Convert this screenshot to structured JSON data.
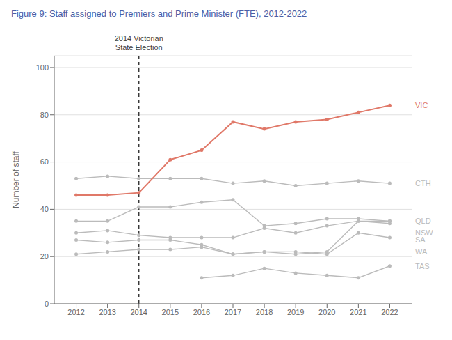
{
  "chart_data": {
    "type": "line",
    "title": "Figure 9: Staff assigned to Premiers and Prime Minister (FTE), 2012-2022",
    "ylabel": "Number of staff",
    "x": [
      2012,
      2013,
      2014,
      2015,
      2016,
      2017,
      2018,
      2019,
      2020,
      2021,
      2022
    ],
    "series": [
      {
        "name": "CTH",
        "color": "#BBBBBB",
        "values": [
          53,
          54,
          53,
          53,
          53,
          51,
          52,
          50,
          51,
          52,
          51
        ],
        "label_y": 51
      },
      {
        "name": "QLD",
        "color": "#BBBBBB",
        "values": [
          35,
          35,
          41,
          41,
          43,
          44,
          33,
          34,
          36,
          36,
          35
        ],
        "label_y": 35
      },
      {
        "name": "NSW",
        "color": "#BBBBBB",
        "values": [
          30,
          31,
          29,
          28,
          28,
          28,
          32,
          30,
          33,
          35,
          34
        ],
        "label_y": 30
      },
      {
        "name": "SA",
        "color": "#BBBBBB",
        "values": [
          27,
          26,
          27,
          27,
          25,
          21,
          22,
          22,
          21,
          30,
          28
        ],
        "label_y": 27
      },
      {
        "name": "WA",
        "color": "#BBBBBB",
        "values": [
          21,
          22,
          23,
          23,
          24,
          21,
          22,
          21,
          22,
          35,
          35
        ],
        "label_y": 22
      },
      {
        "name": "TAS",
        "color": "#BBBBBB",
        "values": [
          null,
          null,
          null,
          null,
          11,
          12,
          15,
          13,
          12,
          11,
          16
        ],
        "label_y": 16
      },
      {
        "name": "VIC",
        "color": "#E07868",
        "values": [
          46,
          46,
          47,
          61,
          65,
          77,
          74,
          77,
          78,
          81,
          84
        ],
        "label_y": 84
      }
    ],
    "xlim": [
      2011.3,
      2022.7
    ],
    "xticks": [
      2012,
      2013,
      2014,
      2015,
      2016,
      2017,
      2018,
      2019,
      2020,
      2021,
      2022
    ],
    "ylim": [
      0,
      105
    ],
    "yticks": [
      0,
      20,
      40,
      60,
      80,
      100
    ],
    "grid": true,
    "marker": "circle",
    "annotations": [
      {
        "text": "2014 Victorian\nState Election",
        "x": 2014,
        "line_style": "dashed"
      }
    ]
  }
}
